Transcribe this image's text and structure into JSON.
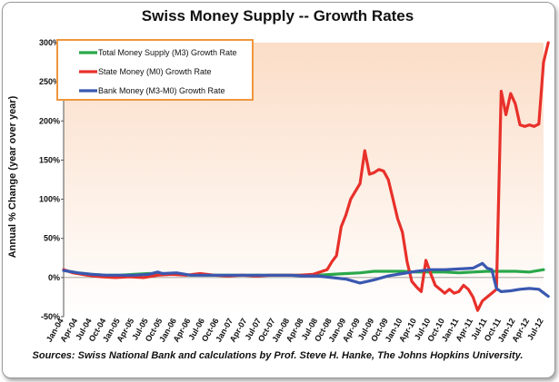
{
  "chart_data": {
    "type": "line",
    "title": "Swiss Money Supply -- Growth Rates",
    "ylabel": "Annual % Change (year over year)",
    "xlabel": "",
    "source": "Sources: Swiss National Bank and calculations by Prof. Steve H. Hanke, The Johns Hopkins University.",
    "ylim": [
      -50,
      300
    ],
    "yticks": [
      -50,
      0,
      50,
      100,
      150,
      200,
      250,
      300
    ],
    "ytick_labels": [
      "-50%",
      "0%",
      "50%",
      "100%",
      "150%",
      "200%",
      "250%",
      "300%"
    ],
    "xlim": [
      "2004-01",
      "2012-07"
    ],
    "xtick_labels": [
      "Jan-04",
      "Apr-04",
      "Jul-04",
      "Oct-04",
      "Jan-05",
      "Apr-05",
      "Jul-05",
      "Oct-05",
      "Jan-06",
      "Apr-06",
      "Jul-06",
      "Oct-06",
      "Jan-07",
      "Apr-07",
      "Jul-07",
      "Oct-07",
      "Jan-08",
      "Apr-08",
      "Jul-08",
      "Oct-08",
      "Jan-09",
      "Apr-09",
      "Jul-09",
      "Oct-09",
      "Jan-10",
      "Apr-10",
      "Jul-10",
      "Oct-10",
      "Jan-11",
      "Apr-11",
      "Jul-11",
      "Oct-11",
      "Jan-12",
      "Apr-12",
      "Jul-12"
    ],
    "grid": false,
    "legend_position": "top-left",
    "background": "orange-gradient",
    "series": [
      {
        "name": "Total Money Supply (M3) Growth Rate",
        "color": "#2aa84a",
        "points": [
          [
            "2004-01",
            9
          ],
          [
            "2004-04",
            6
          ],
          [
            "2004-07",
            4
          ],
          [
            "2004-10",
            3
          ],
          [
            "2005-01",
            3
          ],
          [
            "2005-04",
            4
          ],
          [
            "2005-07",
            5
          ],
          [
            "2005-10",
            5
          ],
          [
            "2006-01",
            4
          ],
          [
            "2006-04",
            3
          ],
          [
            "2006-07",
            3
          ],
          [
            "2006-10",
            3
          ],
          [
            "2007-01",
            3
          ],
          [
            "2007-04",
            3
          ],
          [
            "2007-07",
            3
          ],
          [
            "2007-10",
            3
          ],
          [
            "2008-01",
            3
          ],
          [
            "2008-04",
            3
          ],
          [
            "2008-07",
            3
          ],
          [
            "2008-10",
            4
          ],
          [
            "2009-01",
            5
          ],
          [
            "2009-04",
            6
          ],
          [
            "2009-07",
            8
          ],
          [
            "2009-10",
            8
          ],
          [
            "2010-01",
            8
          ],
          [
            "2010-04",
            7
          ],
          [
            "2010-07",
            7
          ],
          [
            "2010-10",
            7
          ],
          [
            "2011-01",
            6
          ],
          [
            "2011-04",
            7
          ],
          [
            "2011-07",
            8
          ],
          [
            "2011-10",
            8
          ],
          [
            "2012-01",
            8
          ],
          [
            "2012-04",
            7
          ],
          [
            "2012-07",
            10
          ]
        ]
      },
      {
        "name": "State Money (M0) Growth Rate",
        "color": "#e8302a",
        "points": [
          [
            "2004-01",
            10
          ],
          [
            "2004-03",
            6
          ],
          [
            "2004-06",
            3
          ],
          [
            "2004-09",
            1
          ],
          [
            "2004-12",
            0
          ],
          [
            "2005-03",
            1
          ],
          [
            "2005-06",
            0
          ],
          [
            "2005-09",
            3
          ],
          [
            "2005-12",
            4
          ],
          [
            "2006-03",
            3
          ],
          [
            "2006-06",
            5
          ],
          [
            "2006-09",
            3
          ],
          [
            "2006-12",
            2
          ],
          [
            "2007-03",
            3
          ],
          [
            "2007-06",
            2
          ],
          [
            "2007-09",
            3
          ],
          [
            "2007-12",
            3
          ],
          [
            "2008-03",
            3
          ],
          [
            "2008-06",
            4
          ],
          [
            "2008-09",
            10
          ],
          [
            "2008-10",
            20
          ],
          [
            "2008-11",
            28
          ],
          [
            "2008-12",
            65
          ],
          [
            "2009-01",
            80
          ],
          [
            "2009-02",
            100
          ],
          [
            "2009-03",
            110
          ],
          [
            "2009-04",
            120
          ],
          [
            "2009-05",
            162
          ],
          [
            "2009-06",
            132
          ],
          [
            "2009-07",
            134
          ],
          [
            "2009-08",
            138
          ],
          [
            "2009-09",
            136
          ],
          [
            "2009-10",
            125
          ],
          [
            "2009-11",
            100
          ],
          [
            "2009-12",
            75
          ],
          [
            "2010-01",
            58
          ],
          [
            "2010-02",
            20
          ],
          [
            "2010-03",
            -5
          ],
          [
            "2010-04",
            -12
          ],
          [
            "2010-05",
            -18
          ],
          [
            "2010-06",
            22
          ],
          [
            "2010-07",
            5
          ],
          [
            "2010-08",
            -10
          ],
          [
            "2010-09",
            -15
          ],
          [
            "2010-10",
            -20
          ],
          [
            "2010-11",
            -15
          ],
          [
            "2010-12",
            -20
          ],
          [
            "2011-01",
            -18
          ],
          [
            "2011-02",
            -10
          ],
          [
            "2011-03",
            -15
          ],
          [
            "2011-04",
            -25
          ],
          [
            "2011-05",
            -42
          ],
          [
            "2011-06",
            -30
          ],
          [
            "2011-07",
            -25
          ],
          [
            "2011-08",
            -20
          ],
          [
            "2011-09",
            -15
          ],
          [
            "2011-10",
            238
          ],
          [
            "2011-11",
            208
          ],
          [
            "2011-12",
            235
          ],
          [
            "2012-01",
            222
          ],
          [
            "2012-02",
            195
          ],
          [
            "2012-03",
            193
          ],
          [
            "2012-04",
            195
          ],
          [
            "2012-05",
            193
          ],
          [
            "2012-06",
            196
          ],
          [
            "2012-07",
            275
          ],
          [
            "2012-08",
            300
          ]
        ]
      },
      {
        "name": "Bank Money (M3-M0) Growth Rate",
        "color": "#3a58b0",
        "points": [
          [
            "2004-01",
            9
          ],
          [
            "2004-04",
            6
          ],
          [
            "2004-07",
            4
          ],
          [
            "2004-10",
            3
          ],
          [
            "2005-01",
            3
          ],
          [
            "2005-04",
            3
          ],
          [
            "2005-07",
            4
          ],
          [
            "2005-09",
            7
          ],
          [
            "2005-10",
            5
          ],
          [
            "2006-01",
            6
          ],
          [
            "2006-04",
            3
          ],
          [
            "2006-07",
            3
          ],
          [
            "2006-10",
            3
          ],
          [
            "2007-01",
            3
          ],
          [
            "2007-04",
            3
          ],
          [
            "2007-07",
            3
          ],
          [
            "2007-10",
            3
          ],
          [
            "2008-01",
            3
          ],
          [
            "2008-04",
            2
          ],
          [
            "2008-07",
            2
          ],
          [
            "2008-10",
            0
          ],
          [
            "2009-01",
            -2
          ],
          [
            "2009-04",
            -7
          ],
          [
            "2009-07",
            -3
          ],
          [
            "2009-10",
            2
          ],
          [
            "2010-01",
            5
          ],
          [
            "2010-04",
            8
          ],
          [
            "2010-07",
            10
          ],
          [
            "2010-10",
            10
          ],
          [
            "2011-01",
            11
          ],
          [
            "2011-04",
            12
          ],
          [
            "2011-06",
            18
          ],
          [
            "2011-07",
            12
          ],
          [
            "2011-08",
            10
          ],
          [
            "2011-09",
            -14
          ],
          [
            "2011-10",
            -18
          ],
          [
            "2011-12",
            -17
          ],
          [
            "2012-02",
            -15
          ],
          [
            "2012-04",
            -14
          ],
          [
            "2012-06",
            -15
          ],
          [
            "2012-08",
            -24
          ]
        ]
      }
    ]
  }
}
